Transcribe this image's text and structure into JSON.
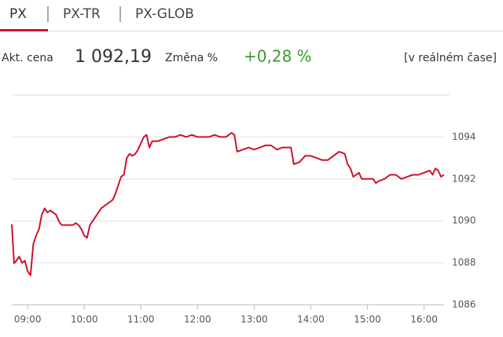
{
  "tabs": [
    "PX",
    "PX-TR",
    "PX-GLOB"
  ],
  "info": {
    "price_label": "Akt. cena",
    "price": "1 092,19",
    "change_label": "Změna %",
    "change": "+0,28 %",
    "realtime": "[v reálném čase]"
  },
  "chart_data": {
    "type": "line",
    "x": [
      8.72,
      8.76,
      8.8,
      8.85,
      8.9,
      8.95,
      9.0,
      9.05,
      9.1,
      9.15,
      9.2,
      9.25,
      9.3,
      9.35,
      9.4,
      9.5,
      9.55,
      9.6,
      9.7,
      9.8,
      9.85,
      9.9,
      9.95,
      10.0,
      10.05,
      10.1,
      10.15,
      10.2,
      10.3,
      10.4,
      10.5,
      10.55,
      10.6,
      10.65,
      10.7,
      10.75,
      10.8,
      10.85,
      10.9,
      10.95,
      11.0,
      11.05,
      11.1,
      11.15,
      11.2,
      11.3,
      11.4,
      11.5,
      11.6,
      11.7,
      11.8,
      11.9,
      12.0,
      12.1,
      12.2,
      12.3,
      12.4,
      12.5,
      12.6,
      12.65,
      12.7,
      12.8,
      12.9,
      13.0,
      13.1,
      13.2,
      13.3,
      13.4,
      13.5,
      13.6,
      13.65,
      13.7,
      13.8,
      13.9,
      14.0,
      14.1,
      14.2,
      14.3,
      14.4,
      14.5,
      14.6,
      14.65,
      14.7,
      14.75,
      14.8,
      14.85,
      14.9,
      15.0,
      15.1,
      15.15,
      15.2,
      15.3,
      15.4,
      15.5,
      15.6,
      15.7,
      15.8,
      15.9,
      16.0,
      16.1,
      16.15,
      16.2,
      16.25,
      16.3,
      16.35
    ],
    "series": [
      {
        "color": "#d0112b",
        "values": [
          1089.84,
          1087.98,
          1088.1,
          1088.3,
          1088.0,
          1088.1,
          1087.6,
          1087.4,
          1088.9,
          1089.3,
          1089.6,
          1090.3,
          1090.6,
          1090.4,
          1090.5,
          1090.3,
          1090.0,
          1089.8,
          1089.8,
          1089.8,
          1089.9,
          1089.8,
          1089.6,
          1089.3,
          1089.2,
          1089.8,
          1090.0,
          1090.2,
          1090.6,
          1090.8,
          1091.0,
          1091.3,
          1091.7,
          1092.1,
          1092.2,
          1093.0,
          1093.2,
          1093.1,
          1093.2,
          1093.4,
          1093.7,
          1094.0,
          1094.1,
          1093.5,
          1093.8,
          1093.8,
          1093.9,
          1094.0,
          1094.0,
          1094.1,
          1094.0,
          1094.1,
          1094.0,
          1094.0,
          1094.0,
          1094.1,
          1094.0,
          1094.0,
          1094.2,
          1094.1,
          1093.3,
          1093.4,
          1093.5,
          1093.4,
          1093.5,
          1093.6,
          1093.6,
          1093.4,
          1093.5,
          1093.5,
          1093.5,
          1092.7,
          1092.8,
          1093.1,
          1093.1,
          1093.0,
          1092.9,
          1092.9,
          1093.1,
          1093.3,
          1093.2,
          1092.7,
          1092.5,
          1092.1,
          1092.2,
          1092.3,
          1092.0,
          1092.0,
          1092.0,
          1091.8,
          1091.9,
          1092.0,
          1092.2,
          1092.2,
          1092.0,
          1092.1,
          1092.2,
          1092.2,
          1092.3,
          1092.4,
          1092.2,
          1092.5,
          1092.4,
          1092.1,
          1092.2
        ]
      }
    ],
    "xlim": [
      8.72,
      16.45
    ],
    "xticks": [
      {
        "value": 9,
        "label": "09:00"
      },
      {
        "value": 10,
        "label": "10:00"
      },
      {
        "value": 11,
        "label": "11:00"
      },
      {
        "value": 12,
        "label": "12:00"
      },
      {
        "value": 13,
        "label": "13:00"
      },
      {
        "value": 14,
        "label": "14:00"
      },
      {
        "value": 15,
        "label": "15:00"
      },
      {
        "value": 16,
        "label": "16:00"
      }
    ],
    "ylim": [
      1086,
      1096
    ],
    "yticks": [
      1086,
      1088,
      1090,
      1092,
      1094
    ],
    "grid": true
  }
}
